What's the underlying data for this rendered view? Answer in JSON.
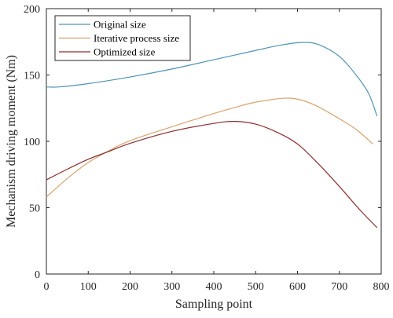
{
  "chart_data": {
    "type": "line",
    "title": "",
    "xlabel": "Sampling point",
    "ylabel": "Mechanism driving moment (Nm)",
    "xlim": [
      0,
      800
    ],
    "ylim": [
      0,
      200
    ],
    "xticks": [
      0,
      100,
      200,
      300,
      400,
      500,
      600,
      700,
      800
    ],
    "yticks": [
      0,
      50,
      100,
      150,
      200
    ],
    "grid": false,
    "legend_position": "top-left",
    "series": [
      {
        "name": "Original size",
        "color": "#4f93b5",
        "points": [
          [
            0,
            141
          ],
          [
            30,
            141
          ],
          [
            100,
            143.5
          ],
          [
            200,
            148.5
          ],
          [
            300,
            154.5
          ],
          [
            400,
            161.5
          ],
          [
            500,
            168.5
          ],
          [
            560,
            172.5
          ],
          [
            610,
            174.5
          ],
          [
            650,
            173
          ],
          [
            700,
            164
          ],
          [
            740,
            150
          ],
          [
            770,
            136
          ],
          [
            790,
            119
          ]
        ]
      },
      {
        "name": "Iterative process size",
        "color": "#d9a36e",
        "points": [
          [
            0,
            58
          ],
          [
            50,
            72
          ],
          [
            100,
            84
          ],
          [
            150,
            93
          ],
          [
            200,
            100.5
          ],
          [
            300,
            111
          ],
          [
            400,
            121
          ],
          [
            450,
            125.5
          ],
          [
            500,
            129.5
          ],
          [
            570,
            132.5
          ],
          [
            610,
            131
          ],
          [
            650,
            126
          ],
          [
            700,
            117
          ],
          [
            740,
            109
          ],
          [
            780,
            98
          ]
        ]
      },
      {
        "name": "Optimized size",
        "color": "#8e2c2c",
        "points": [
          [
            0,
            71
          ],
          [
            50,
            79
          ],
          [
            100,
            86.5
          ],
          [
            150,
            92.5
          ],
          [
            200,
            98.5
          ],
          [
            300,
            107.5
          ],
          [
            400,
            113.5
          ],
          [
            450,
            115
          ],
          [
            500,
            113
          ],
          [
            550,
            107
          ],
          [
            600,
            98
          ],
          [
            650,
            83
          ],
          [
            700,
            66
          ],
          [
            750,
            48
          ],
          [
            790,
            35
          ]
        ]
      }
    ]
  }
}
